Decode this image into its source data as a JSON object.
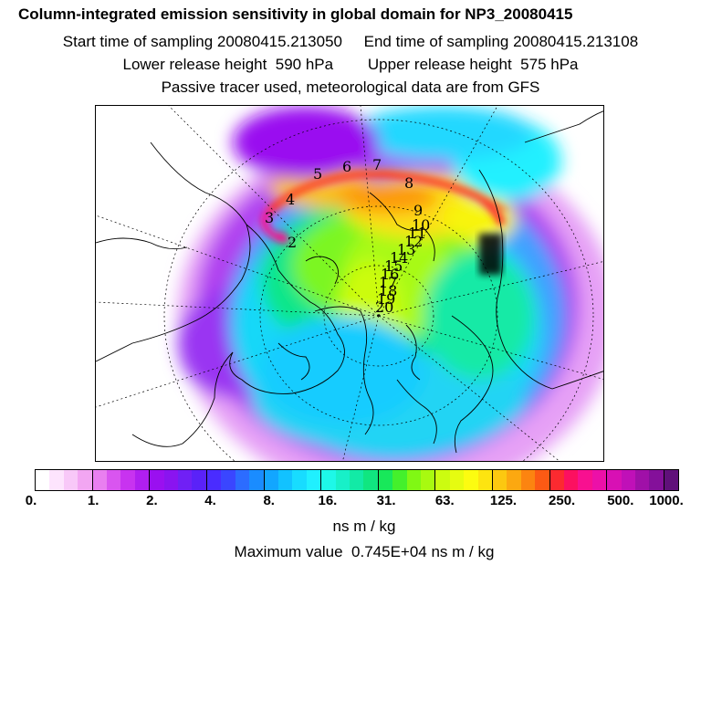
{
  "header": {
    "title": "Column-integrated emission sensitivity in global domain for NP3_20080415",
    "sampling": "Start time of sampling 20080415.213050     End time of sampling 20080415.213108",
    "release": "Lower release height  590 hPa        Upper release height  575 hPa",
    "note": "Passive tracer used, meteorological data are from GFS"
  },
  "map": {
    "track_labels": [
      "2",
      "3",
      "4",
      "5",
      "6",
      "7",
      "8",
      "9",
      "10",
      "11",
      "12",
      "13",
      "14",
      "15",
      "16",
      "17",
      "18",
      "19",
      "20"
    ]
  },
  "colorbar": {
    "tick_labels": [
      "0.",
      "1.",
      "2.",
      "4.",
      "8.",
      "16.",
      "31.",
      "63.",
      "125.",
      "250.",
      "500.",
      "1000."
    ],
    "unit": "ns m / kg",
    "colors": [
      "#ffffff",
      "#fde4fd",
      "#f8c8f8",
      "#f2a6f2",
      "#e97ff0",
      "#d955f0",
      "#c833f0",
      "#b01ff0",
      "#9a10f0",
      "#8a14f0",
      "#7020f5",
      "#5a22f8",
      "#4a2cff",
      "#3a46ff",
      "#2c6cff",
      "#1a8cff",
      "#12a6ff",
      "#12c2ff",
      "#18dcff",
      "#20f0ff",
      "#1ef8e8",
      "#18f0c8",
      "#12eaa6",
      "#10e680",
      "#18e85a",
      "#44f02c",
      "#80f814",
      "#a8fa10",
      "#ccfc10",
      "#e6fc10",
      "#fcfc10",
      "#fde410",
      "#fcc810",
      "#fca810",
      "#fc8410",
      "#fc5a14",
      "#fc2a30",
      "#fc1060",
      "#f81090",
      "#ec10a8",
      "#d810b4",
      "#c010b8",
      "#a010a8",
      "#84109a",
      "#60107a"
    ]
  },
  "max_value": "Maximum value  0.745E+04 ns m / kg"
}
